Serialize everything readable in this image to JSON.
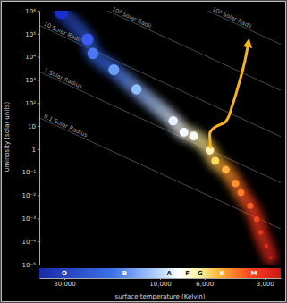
{
  "chart_data": {
    "type": "scatter",
    "log": true,
    "grid": false,
    "x_label": "surface temperature (Kelvin)",
    "y_label": "luminosity (solar units)",
    "xlim": [
      40000,
      2500
    ],
    "ylim": [
      1e-05,
      1000000
    ],
    "xticks": [
      {
        "value": 30000,
        "label": "30,000"
      },
      {
        "value": 10000,
        "label": "10,000"
      },
      {
        "value": 6000,
        "label": "6,000"
      },
      {
        "value": 3000,
        "label": "3,000"
      }
    ],
    "yticks": [
      {
        "value": 1000000,
        "label": "10⁶"
      },
      {
        "value": 100000,
        "label": "10⁵"
      },
      {
        "value": 10000,
        "label": "10⁴"
      },
      {
        "value": 1000,
        "label": "10³"
      },
      {
        "value": 100,
        "label": "10²"
      },
      10,
      1,
      {
        "value": 0.1,
        "label": "10⁻¹"
      },
      {
        "value": 0.01,
        "label": "10⁻²"
      },
      {
        "value": 0.001,
        "label": "10⁻³"
      },
      {
        "value": 0.0001,
        "label": "10⁻⁴"
      },
      {
        "value": 1e-05,
        "label": "10⁻⁵"
      }
    ],
    "x": [
      31000,
      23000,
      21600,
      17000,
      13100,
      8600,
      7600,
      6800,
      5650,
      5300,
      4700,
      4200,
      3950,
      3550,
      3300,
      3150,
      2950,
      2800
    ],
    "values": [
      830000,
      57000,
      14000,
      2750,
      390,
      17,
      5.4,
      3.7,
      0.9,
      0.31,
      0.13,
      0.033,
      0.013,
      0.0035,
      0.00093,
      0.00025,
      6.5e-05,
      2e-05
    ],
    "colors": [
      "#1a2fd0",
      "#3a5cf0",
      "#4a78f5",
      "#6a9cf8",
      "#8fc0fb",
      "#e8f2ff",
      "#f4f8ff",
      "#fbfbf2",
      "#fff0b0",
      "#ffd860",
      "#ffb040",
      "#ff9030",
      "#ff7a2a",
      "#f56025",
      "#ee4a22",
      "#e63a20",
      "#dd2a1c",
      "#d21e1a"
    ],
    "track": {
      "type": "line",
      "color": "#f7b21e",
      "marker": "arrow",
      "x": [
        5600,
        5650,
        5320,
        4720,
        4360,
        4060,
        3790,
        3640
      ],
      "values": [
        1.2,
        4.5,
        9.1,
        15,
        78,
        600,
        5600,
        34000
      ]
    },
    "radius_lines": {
      "radii": [
        1000,
        100,
        10,
        1,
        0.1
      ],
      "labels": [
        "10³ Solar Radii",
        "10² Solar Radii",
        "10 Solar Radii",
        "1 Solar Radius",
        "0.1 Solar Radius"
      ]
    },
    "spectral_classes": {
      "labels": [
        "O",
        "B",
        "A",
        "F",
        "G",
        "K",
        "M"
      ],
      "x": [
        30000,
        15000,
        9000,
        7300,
        6300,
        4900,
        3400
      ]
    }
  }
}
